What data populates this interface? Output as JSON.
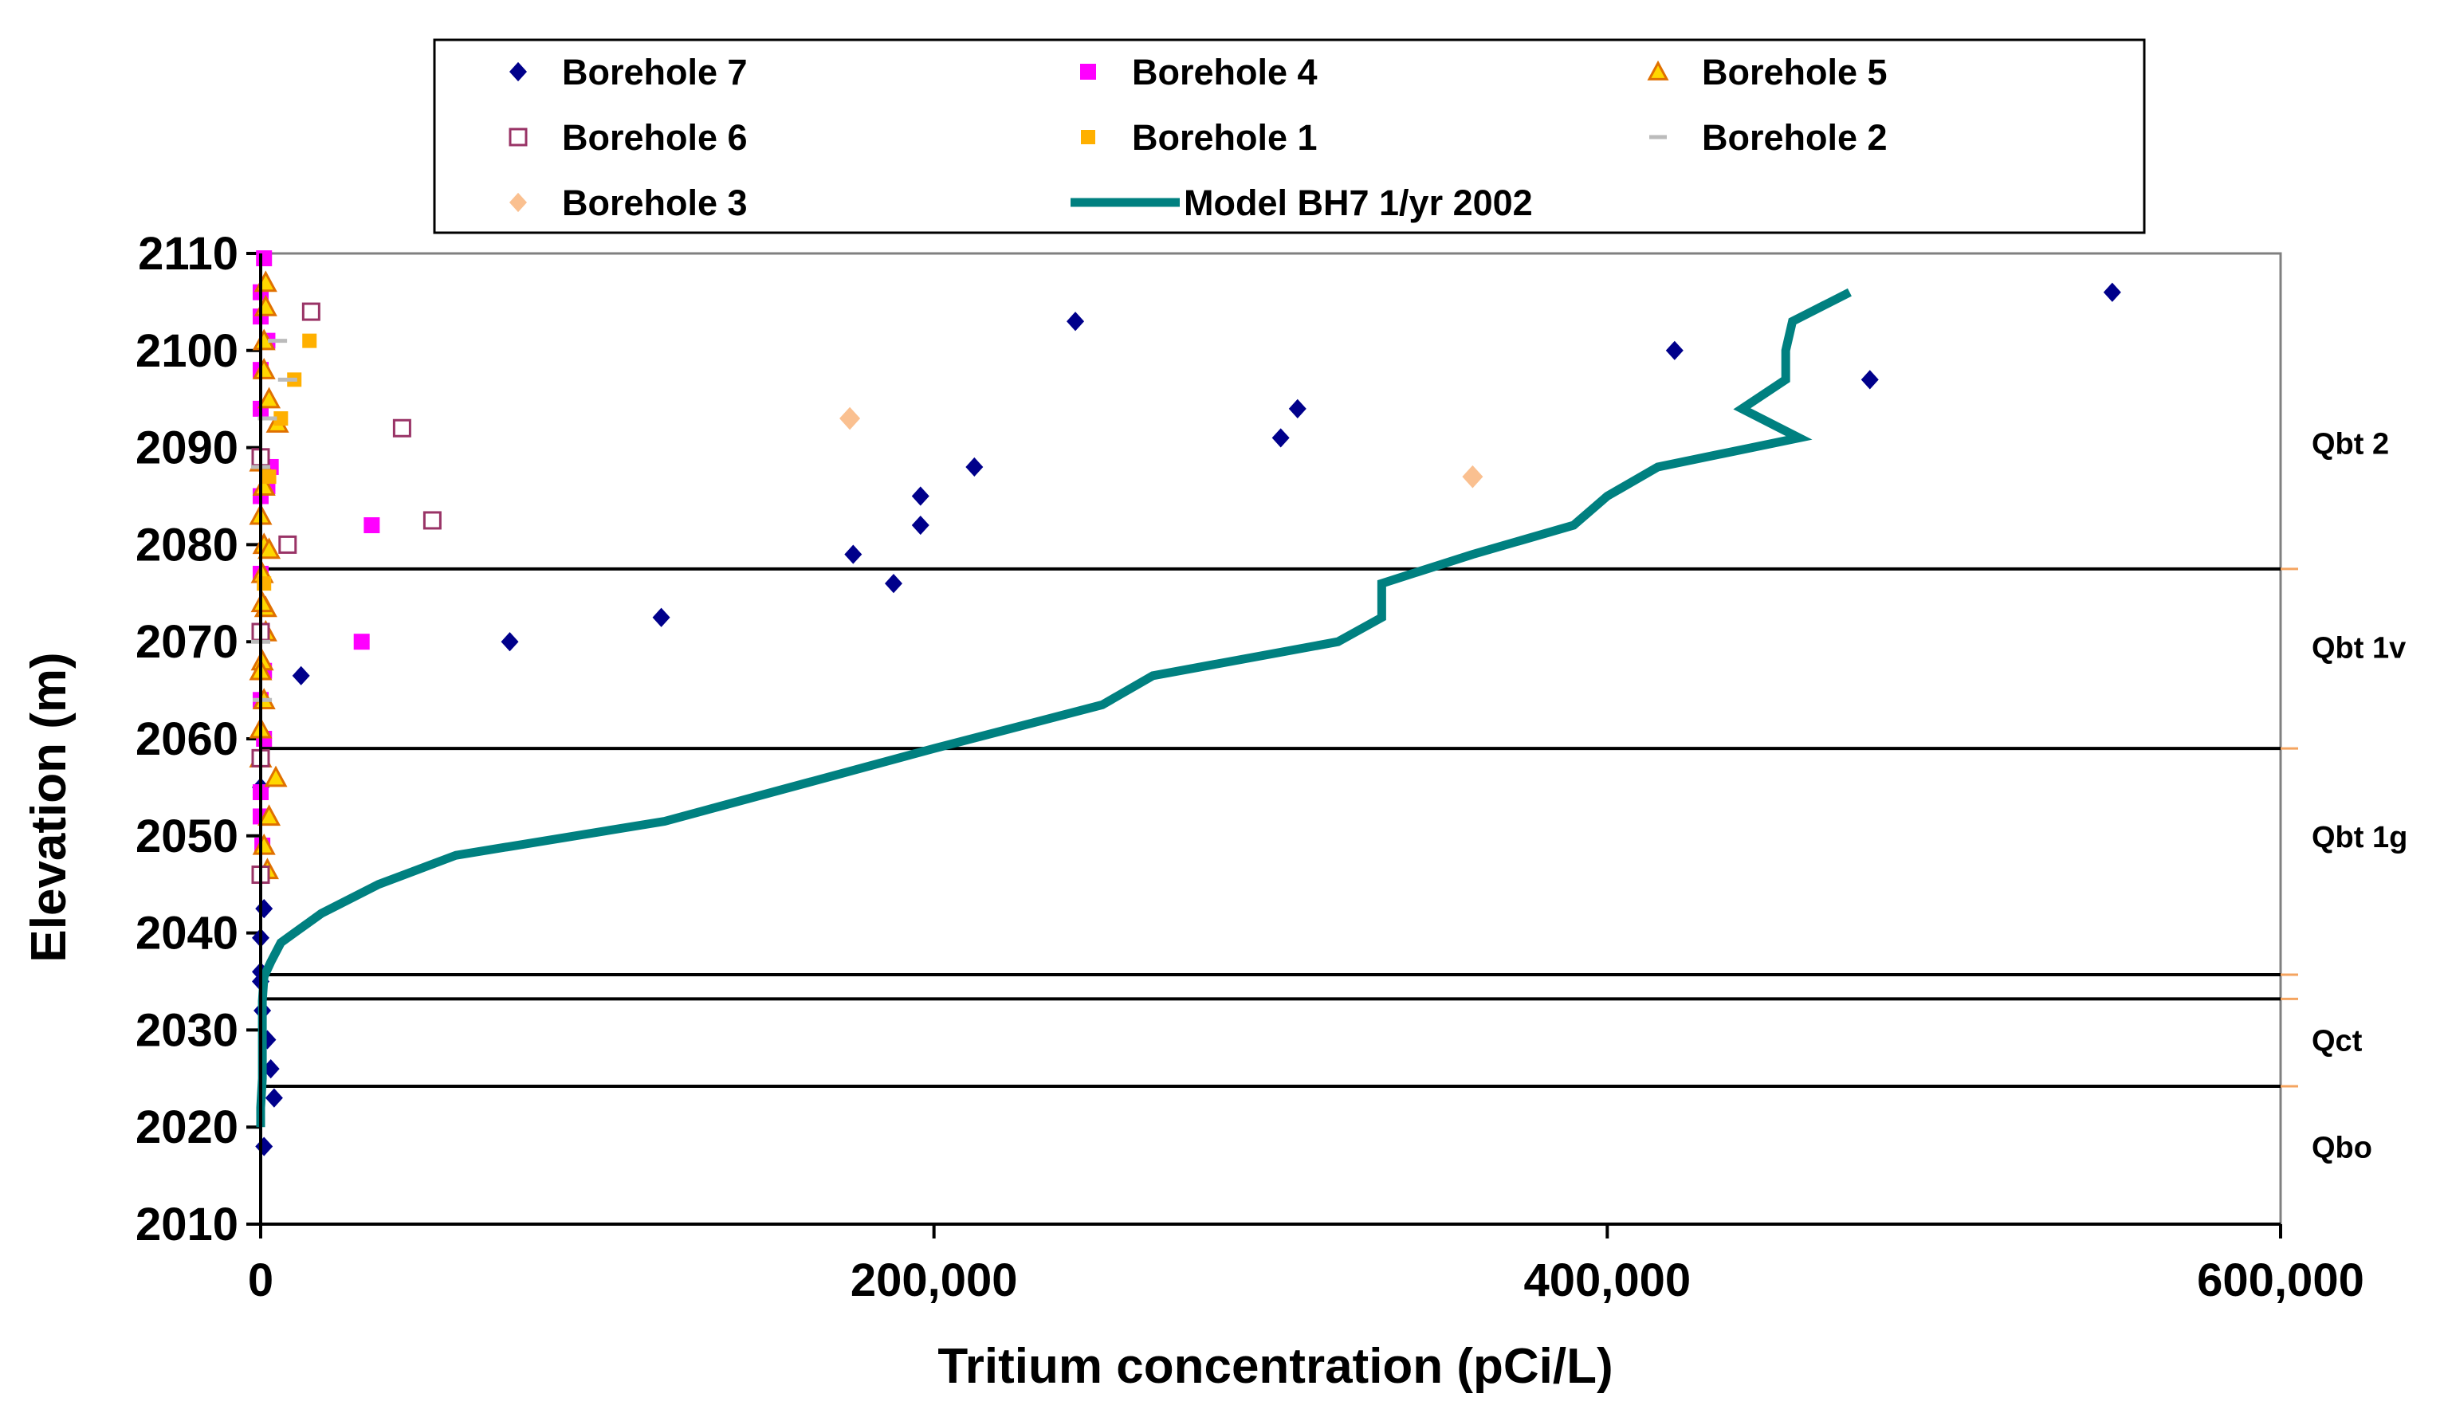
{
  "chart_data": {
    "type": "scatter",
    "title": "",
    "xlabel": "Tritium concentration (pCi/L)",
    "ylabel": "Elevation (m)",
    "xlim": [
      0,
      600000
    ],
    "ylim": [
      2010,
      2110
    ],
    "x_ticks": [
      0,
      200000,
      400000,
      600000
    ],
    "x_tick_labels": [
      "0",
      "200,000",
      "400,000",
      "600,000"
    ],
    "y_ticks": [
      2010,
      2020,
      2030,
      2040,
      2050,
      2060,
      2070,
      2080,
      2090,
      2100,
      2110
    ],
    "y_tick_labels": [
      "2010",
      "2020",
      "2030",
      "2040",
      "2050",
      "2060",
      "2070",
      "2080",
      "2090",
      "2100",
      "2110"
    ],
    "legend_position": "top",
    "colors": {
      "borehole7": "#00008B",
      "borehole4": "#FF00FF",
      "borehole5_fill": "#FFD700",
      "borehole5_edge": "#E07000",
      "borehole6": "#993366",
      "borehole1": "#FFB000",
      "borehole2": "#BBBBBB",
      "borehole3": "#FAC090",
      "model": "#008080"
    },
    "series": [
      {
        "name": "Borehole 7",
        "marker": "diamond",
        "x": [
          550000,
          478000,
          420000,
          308000,
          303000,
          242000,
          212000,
          196000,
          196000,
          176000,
          188000,
          119000,
          74000,
          12000,
          0,
          1000,
          0,
          0,
          0,
          500,
          2000,
          3000,
          4000,
          1000,
          0
        ],
        "y": [
          2106,
          2097,
          2100,
          2094,
          2091,
          2103,
          2088,
          2085,
          2082,
          2079,
          2076,
          2072.5,
          2070,
          2066.5,
          2046,
          2042.5,
          2039.5,
          2036,
          2035,
          2032,
          2029,
          2026,
          2023,
          2018,
          2055
        ]
      },
      {
        "name": "Borehole 4",
        "marker": "square",
        "x": [
          1000,
          0,
          0,
          2000,
          0,
          0,
          3000,
          2000,
          0,
          33000,
          0,
          30000,
          1000,
          0,
          1000,
          0,
          0,
          500
        ],
        "y": [
          2109.5,
          2106,
          2103.5,
          2101,
          2098,
          2094,
          2088,
          2086,
          2085,
          2082,
          2077,
          2070,
          2067,
          2064,
          2060,
          2054.5,
          2052,
          2049
        ]
      },
      {
        "name": "Borehole 5",
        "marker": "triangle",
        "x": [
          1500,
          1500,
          1000,
          1000,
          2500,
          5000,
          0,
          1000,
          0,
          1000,
          500,
          1500,
          1500,
          500,
          0,
          1000,
          4500,
          0,
          0,
          2500,
          1000,
          2000,
          500,
          2500
        ],
        "y": [
          2107,
          2104.5,
          2101,
          2098,
          2095,
          2092.5,
          2088.5,
          2086,
          2083,
          2080,
          2077,
          2073.5,
          2071,
          2068,
          2067,
          2064,
          2056,
          2058,
          2061,
          2052,
          2049,
          2046.5,
          2074,
          2079.5
        ]
      },
      {
        "name": "Borehole 6",
        "marker": "square-open",
        "x": [
          15000,
          42000,
          51000,
          8000,
          0,
          0,
          0,
          0
        ],
        "y": [
          2104,
          2092,
          2082.5,
          2080,
          2089,
          2071,
          2058,
          2046
        ]
      },
      {
        "name": "Borehole 1",
        "marker": "square",
        "x": [
          14500,
          10000,
          6000,
          2500,
          1000
        ],
        "y": [
          2101,
          2097,
          2093,
          2087,
          2076
        ]
      },
      {
        "name": "Borehole 2",
        "marker": "dash",
        "x": [
          5000,
          8000,
          2000,
          0,
          0,
          500
        ],
        "y": [
          2101,
          2097,
          2093,
          2088,
          2070,
          2064
        ]
      },
      {
        "name": "Borehole 3",
        "marker": "diamond",
        "x": [
          175000,
          360000
        ],
        "y": [
          2093,
          2087
        ]
      },
      {
        "name": "Model BH7 1/yr 2002",
        "marker": "line",
        "x": [
          472000,
          455000,
          453000,
          453000,
          440000,
          457000,
          443000,
          415000,
          400000,
          390000,
          360000,
          333000,
          333000,
          320000,
          265000,
          250000,
          200000,
          120000,
          58000,
          35000,
          18000,
          10000,
          6000,
          3000,
          1000,
          500,
          500,
          500,
          0,
          0
        ],
        "y": [
          2106,
          2103,
          2100,
          2097,
          2094,
          2091,
          2090,
          2088,
          2085,
          2082,
          2079,
          2076,
          2072.5,
          2070,
          2066.5,
          2063.5,
          2059,
          2051.5,
          2048,
          2045,
          2042,
          2040,
          2039,
          2037,
          2035.5,
          2033,
          2029,
          2025,
          2022,
          2020
        ]
      }
    ],
    "unit_lines": [
      2077.5,
      2059,
      2035.7,
      2033.2,
      2024.2
    ],
    "unit_labels": [
      {
        "name": "Qbt 2",
        "elev": 2090.5
      },
      {
        "name": "Qbt 1v",
        "elev": 2069.5
      },
      {
        "name": "Qbt 1g",
        "elev": 2050
      },
      {
        "name": "Qct",
        "elev": 2029
      },
      {
        "name": "Qbo",
        "elev": 2018
      }
    ]
  }
}
